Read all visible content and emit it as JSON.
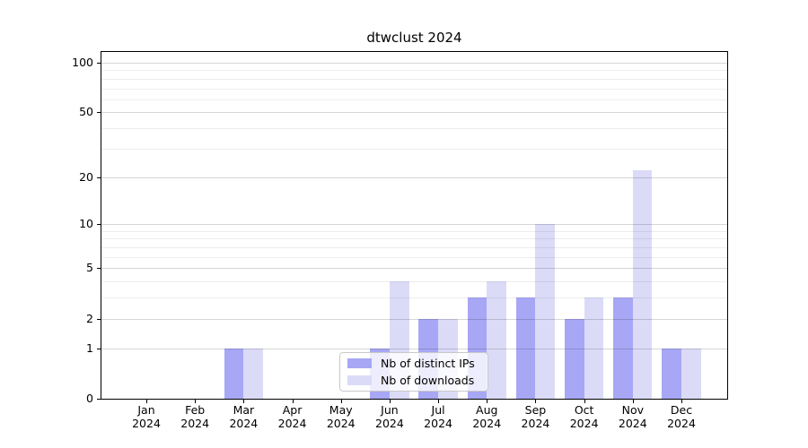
{
  "chart_data": {
    "type": "bar",
    "title": "dtwclust 2024",
    "categories": [
      "Jan",
      "Feb",
      "Mar",
      "Apr",
      "May",
      "Jun",
      "Jul",
      "Aug",
      "Sep",
      "Oct",
      "Nov",
      "Dec"
    ],
    "category_year": "2024",
    "series": [
      {
        "name": "Nb of distinct IPs",
        "color": "#a7a7f5",
        "values": [
          0,
          0,
          1,
          0,
          0,
          1,
          2,
          3,
          3,
          2,
          3,
          1
        ]
      },
      {
        "name": "Nb of downloads",
        "color": "#dbdbf8",
        "values": [
          0,
          0,
          1,
          0,
          0,
          4,
          2,
          4,
          10,
          3,
          22,
          1
        ]
      }
    ],
    "y_axis": {
      "scale": "log1p",
      "major_ticks": [
        0,
        1,
        2,
        5,
        10,
        20,
        50,
        100
      ],
      "minor_gridlines": [
        3,
        4,
        6,
        7,
        8,
        9,
        30,
        40,
        60,
        70,
        80,
        90
      ],
      "max_value": 116
    },
    "xlabel": "",
    "ylabel": "",
    "grid": true,
    "legend_position": "lower center"
  },
  "colors": {
    "background": "#ffffff",
    "axis": "#000000",
    "ips_bar": "#a7a7f5",
    "downloads_bar": "#dbdbf8",
    "legend_border": "#c9c9c9"
  }
}
